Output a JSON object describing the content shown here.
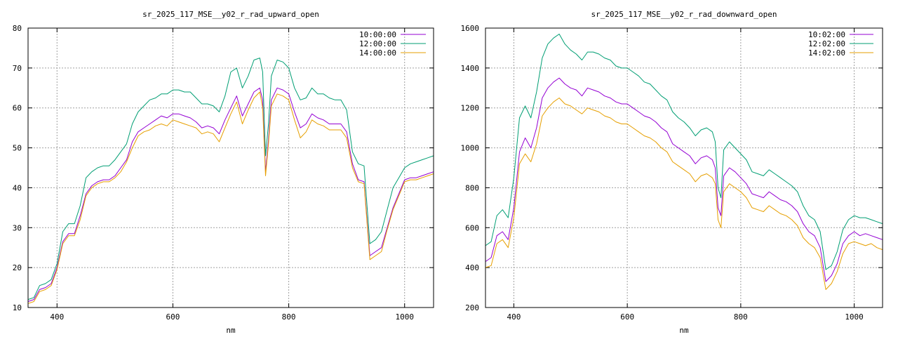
{
  "chart_data": [
    {
      "type": "line",
      "title": "sr_2025_117_MSE__y02_r_rad_upward_open",
      "xlabel": "nm",
      "ylabel": "",
      "xlim": [
        350,
        1050
      ],
      "ylim": [
        10,
        80
      ],
      "xticks": [
        400,
        600,
        800,
        1000
      ],
      "yticks": [
        10,
        20,
        30,
        40,
        50,
        60,
        70,
        80
      ],
      "grid": true,
      "legend_position": "top-right",
      "x": [
        350,
        360,
        370,
        380,
        390,
        400,
        410,
        420,
        430,
        440,
        450,
        460,
        470,
        480,
        490,
        500,
        510,
        520,
        530,
        540,
        550,
        560,
        570,
        580,
        590,
        600,
        610,
        620,
        630,
        640,
        650,
        660,
        670,
        680,
        690,
        700,
        710,
        720,
        730,
        740,
        750,
        755,
        760,
        765,
        770,
        780,
        790,
        800,
        810,
        820,
        830,
        840,
        850,
        860,
        870,
        880,
        890,
        900,
        910,
        920,
        930,
        940,
        950,
        960,
        970,
        980,
        990,
        1000,
        1010,
        1020,
        1030,
        1040,
        1050
      ],
      "series": [
        {
          "name": "10:00:00",
          "color": "#9400d3",
          "values": [
            11.5,
            12,
            14.5,
            15,
            16,
            20,
            26.5,
            28.5,
            28.5,
            33,
            38.5,
            40.5,
            41.5,
            42,
            42,
            43,
            45,
            47,
            51.5,
            54,
            55,
            56,
            57,
            58,
            57.5,
            58.5,
            58.5,
            58,
            57.5,
            56.5,
            55,
            55.5,
            55,
            53.5,
            57,
            60,
            63,
            58,
            61,
            64,
            65,
            62,
            44,
            52,
            62,
            65,
            64.5,
            63.5,
            59,
            55,
            56,
            58.5,
            57.5,
            57,
            56,
            56,
            56,
            54,
            46,
            42,
            41.5,
            23,
            24,
            25,
            30,
            35,
            38.5,
            42,
            42.5,
            42.5,
            43,
            43.5,
            44
          ]
        },
        {
          "name": "12:00:00",
          "color": "#009e73",
          "values": [
            12,
            12.5,
            15.5,
            16,
            17,
            21,
            29,
            31,
            31,
            35.5,
            42.5,
            44,
            45,
            45.5,
            45.5,
            47,
            49,
            51,
            56,
            59,
            60.5,
            62,
            62.5,
            63.5,
            63.5,
            64.5,
            64.5,
            64,
            64,
            62.5,
            61,
            61,
            60.5,
            59,
            63,
            69,
            70,
            65,
            68,
            72,
            72.5,
            69,
            48,
            56,
            68,
            72,
            71.5,
            70,
            65,
            62,
            62.5,
            65,
            63.5,
            63.5,
            62.5,
            62,
            62,
            59.5,
            49,
            46,
            45.5,
            26,
            27,
            29,
            34.5,
            40,
            42.5,
            45,
            46,
            46.5,
            47,
            47.5,
            48
          ]
        },
        {
          "name": "14:00:00",
          "color": "#e69f00",
          "values": [
            11,
            11.5,
            14,
            14.5,
            15.5,
            19.5,
            26,
            28,
            28,
            32,
            38,
            40,
            41,
            41.5,
            41.5,
            42.5,
            44,
            46.5,
            50,
            53,
            54,
            54.5,
            55.5,
            56,
            55.5,
            57,
            56.5,
            56,
            55.5,
            55,
            53.5,
            54,
            53.5,
            51.5,
            55,
            58.5,
            61.5,
            56,
            59.5,
            62.5,
            64,
            60,
            43,
            51,
            60.5,
            63.5,
            63,
            62,
            57,
            52.5,
            54,
            57,
            56,
            55.5,
            54.5,
            54.5,
            54.5,
            52.5,
            45,
            41.5,
            41,
            22,
            23,
            24,
            29.5,
            34.5,
            38,
            41.5,
            42,
            42,
            42.5,
            43,
            43.5
          ]
        }
      ]
    },
    {
      "type": "line",
      "title": "sr_2025_117_MSE__y02_r_rad_downward_open",
      "xlabel": "nm",
      "ylabel": "",
      "xlim": [
        350,
        1050
      ],
      "ylim": [
        200,
        1600
      ],
      "xticks": [
        400,
        600,
        800,
        1000
      ],
      "yticks": [
        200,
        400,
        600,
        800,
        1000,
        1200,
        1400,
        1600
      ],
      "grid": true,
      "legend_position": "top-right",
      "x": [
        350,
        360,
        370,
        380,
        390,
        400,
        410,
        420,
        430,
        440,
        450,
        460,
        470,
        480,
        490,
        500,
        510,
        520,
        530,
        540,
        550,
        560,
        570,
        580,
        590,
        600,
        610,
        620,
        630,
        640,
        650,
        660,
        670,
        680,
        690,
        700,
        710,
        720,
        730,
        740,
        750,
        755,
        760,
        765,
        770,
        780,
        790,
        800,
        810,
        820,
        830,
        840,
        850,
        860,
        870,
        880,
        890,
        900,
        910,
        920,
        930,
        940,
        950,
        960,
        970,
        980,
        990,
        1000,
        1010,
        1020,
        1030,
        1040,
        1050
      ],
      "series": [
        {
          "name": "10:02:00",
          "color": "#9400d3",
          "values": [
            430,
            450,
            560,
            580,
            540,
            700,
            980,
            1050,
            1000,
            1100,
            1250,
            1300,
            1330,
            1350,
            1320,
            1300,
            1290,
            1260,
            1300,
            1290,
            1280,
            1260,
            1250,
            1230,
            1220,
            1220,
            1200,
            1180,
            1160,
            1150,
            1130,
            1100,
            1080,
            1020,
            1000,
            980,
            960,
            920,
            950,
            960,
            940,
            900,
            700,
            660,
            860,
            900,
            880,
            850,
            820,
            770,
            760,
            750,
            780,
            760,
            740,
            730,
            710,
            680,
            620,
            580,
            560,
            500,
            330,
            360,
            420,
            520,
            560,
            580,
            560,
            570,
            560,
            550,
            540
          ]
        },
        {
          "name": "12:02:00",
          "color": "#009e73",
          "values": [
            510,
            530,
            660,
            690,
            650,
            850,
            1150,
            1210,
            1150,
            1280,
            1450,
            1520,
            1550,
            1570,
            1520,
            1490,
            1470,
            1440,
            1480,
            1480,
            1470,
            1450,
            1440,
            1410,
            1400,
            1400,
            1380,
            1360,
            1330,
            1320,
            1290,
            1260,
            1240,
            1180,
            1150,
            1130,
            1100,
            1060,
            1090,
            1100,
            1080,
            1030,
            800,
            750,
            990,
            1030,
            1000,
            970,
            940,
            880,
            870,
            860,
            890,
            870,
            850,
            830,
            810,
            780,
            710,
            660,
            640,
            580,
            390,
            410,
            480,
            590,
            640,
            660,
            650,
            650,
            640,
            630,
            620
          ]
        },
        {
          "name": "14:02:00",
          "color": "#e69f00",
          "values": [
            400,
            410,
            520,
            540,
            500,
            650,
            920,
            970,
            930,
            1020,
            1160,
            1200,
            1230,
            1250,
            1220,
            1210,
            1190,
            1170,
            1200,
            1190,
            1180,
            1160,
            1150,
            1130,
            1120,
            1120,
            1100,
            1080,
            1060,
            1050,
            1030,
            1000,
            980,
            930,
            910,
            890,
            870,
            830,
            860,
            870,
            850,
            820,
            640,
            600,
            780,
            820,
            800,
            780,
            750,
            700,
            690,
            680,
            710,
            690,
            670,
            660,
            640,
            610,
            550,
            520,
            500,
            450,
            290,
            320,
            380,
            470,
            520,
            530,
            520,
            510,
            520,
            500,
            490
          ]
        }
      ]
    }
  ]
}
